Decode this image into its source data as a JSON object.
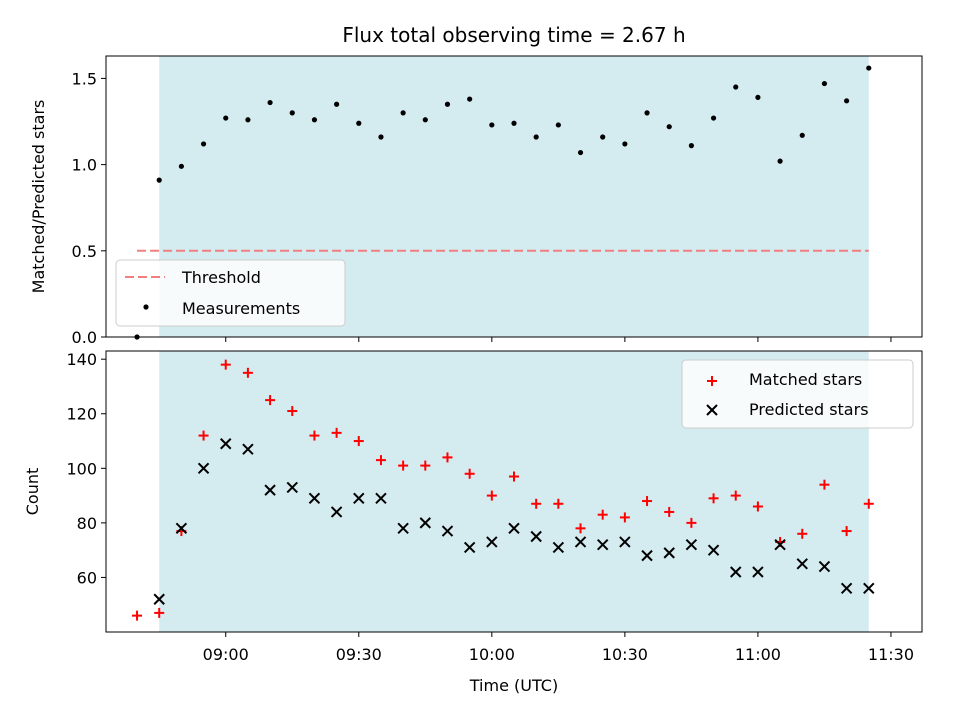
{
  "chart_data": [
    {
      "type": "scatter",
      "title": "Flux total observing time = 2.67 h",
      "ylabel": "Matched/Predicted stars",
      "xlabel": "",
      "ylim": [
        0,
        1.63
      ],
      "yticks": [
        0.0,
        0.5,
        1.0,
        1.5
      ],
      "ytick_labels": [
        "0.0",
        "0.5",
        "1.0",
        "1.5"
      ],
      "x_range_minutes": [
        "08:33",
        "11:37"
      ],
      "shaded_span": [
        "08:45",
        "11:25"
      ],
      "shaded_color": "#d4ebf0",
      "threshold": {
        "name": "Threshold",
        "value": 0.5,
        "x": [
          "08:40",
          "11:25"
        ],
        "color": "#f08080",
        "style": "dashed"
      },
      "legend": {
        "placement": "lower-left",
        "entries": [
          "Threshold",
          "Measurements"
        ]
      },
      "series": [
        {
          "name": "Measurements",
          "marker": "dot",
          "color": "#000000",
          "x": [
            "08:40",
            "08:45",
            "08:50",
            "08:55",
            "09:00",
            "09:05",
            "09:10",
            "09:15",
            "09:20",
            "09:25",
            "09:30",
            "09:35",
            "09:40",
            "09:45",
            "09:50",
            "09:55",
            "10:00",
            "10:05",
            "10:10",
            "10:15",
            "10:20",
            "10:25",
            "10:30",
            "10:35",
            "10:40",
            "10:45",
            "10:50",
            "10:55",
            "11:00",
            "11:05",
            "11:10",
            "11:15",
            "11:20",
            "11:25"
          ],
          "y": [
            0.0,
            0.91,
            0.99,
            1.12,
            1.27,
            1.26,
            1.36,
            1.3,
            1.26,
            1.35,
            1.24,
            1.16,
            1.3,
            1.26,
            1.35,
            1.38,
            1.23,
            1.24,
            1.16,
            1.23,
            1.07,
            1.16,
            1.12,
            1.3,
            1.22,
            1.11,
            1.27,
            1.45,
            1.39,
            1.02,
            1.17,
            1.47,
            1.37,
            1.56
          ]
        }
      ]
    },
    {
      "type": "scatter",
      "title": "",
      "ylabel": "Count",
      "xlabel": "Time (UTC)",
      "ylim": [
        40,
        143
      ],
      "yticks": [
        60,
        80,
        100,
        120,
        140
      ],
      "ytick_labels": [
        "60",
        "80",
        "100",
        "120",
        "140"
      ],
      "xticks": [
        "09:00",
        "09:30",
        "10:00",
        "10:30",
        "11:00",
        "11:30"
      ],
      "xtick_labels": [
        "09:00",
        "09:30",
        "10:00",
        "10:30",
        "11:00",
        "11:30"
      ],
      "x_range_minutes": [
        "08:33",
        "11:37"
      ],
      "shaded_span": [
        "08:45",
        "11:25"
      ],
      "shaded_color": "#d4ebf0",
      "legend": {
        "placement": "upper-right",
        "entries": [
          "Matched stars",
          "Predicted stars"
        ]
      },
      "series": [
        {
          "name": "Matched stars",
          "marker": "plus",
          "color": "#ff0000",
          "x": [
            "08:40",
            "08:45",
            "08:50",
            "08:55",
            "09:00",
            "09:05",
            "09:10",
            "09:15",
            "09:20",
            "09:25",
            "09:30",
            "09:35",
            "09:40",
            "09:45",
            "09:50",
            "09:55",
            "10:00",
            "10:05",
            "10:10",
            "10:15",
            "10:20",
            "10:25",
            "10:30",
            "10:35",
            "10:40",
            "10:45",
            "10:50",
            "10:55",
            "11:00",
            "11:05",
            "11:10",
            "11:15",
            "11:20",
            "11:25"
          ],
          "y": [
            46,
            47,
            77,
            112,
            138,
            135,
            125,
            121,
            112,
            113,
            110,
            103,
            101,
            101,
            104,
            98,
            90,
            97,
            87,
            87,
            78,
            83,
            82,
            88,
            84,
            80,
            89,
            90,
            86,
            73,
            76,
            94,
            77,
            87
          ]
        },
        {
          "name": "Predicted stars",
          "marker": "x",
          "color": "#000000",
          "x": [
            "08:45",
            "08:50",
            "08:55",
            "09:00",
            "09:05",
            "09:10",
            "09:15",
            "09:20",
            "09:25",
            "09:30",
            "09:35",
            "09:40",
            "09:45",
            "09:50",
            "09:55",
            "10:00",
            "10:05",
            "10:10",
            "10:15",
            "10:20",
            "10:25",
            "10:30",
            "10:35",
            "10:40",
            "10:45",
            "10:50",
            "10:55",
            "11:00",
            "11:05",
            "11:10",
            "11:15",
            "11:20",
            "11:25"
          ],
          "y": [
            52,
            78,
            100,
            109,
            107,
            92,
            93,
            89,
            84,
            89,
            89,
            78,
            80,
            77,
            71,
            73,
            78,
            75,
            71,
            73,
            72,
            73,
            68,
            69,
            72,
            70,
            62,
            62,
            72,
            65,
            64,
            56,
            56
          ]
        }
      ]
    }
  ]
}
